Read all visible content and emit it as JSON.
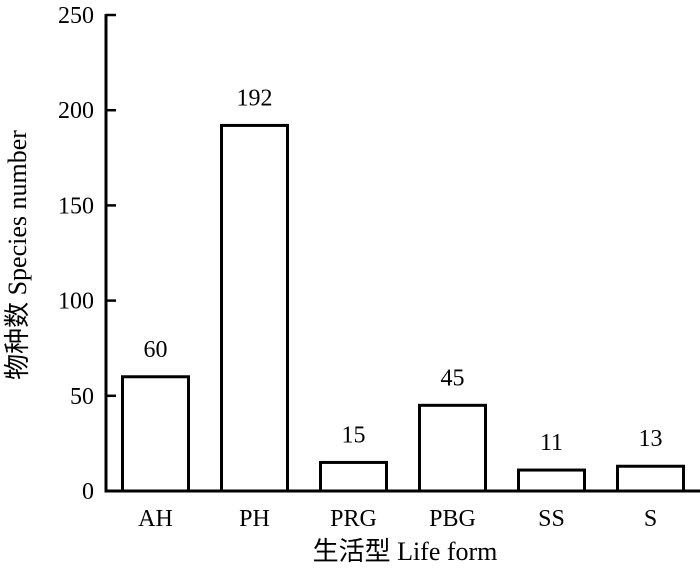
{
  "chart_data": {
    "type": "bar",
    "title": "",
    "xlabel": "生活型 Life form",
    "ylabel": "物种数 Species number",
    "categories": [
      "AH",
      "PH",
      "PRG",
      "PBG",
      "SS",
      "S"
    ],
    "values": [
      60,
      192,
      15,
      45,
      11,
      13
    ],
    "data_labels": [
      "60",
      "192",
      "15",
      "45",
      "11",
      "13"
    ],
    "ylim": [
      0,
      250
    ],
    "yticks": [
      0,
      50,
      100,
      150,
      200,
      250
    ],
    "grid": false,
    "legend": "none",
    "bar_fill": "#ffffff",
    "bar_stroke": "#000000"
  }
}
